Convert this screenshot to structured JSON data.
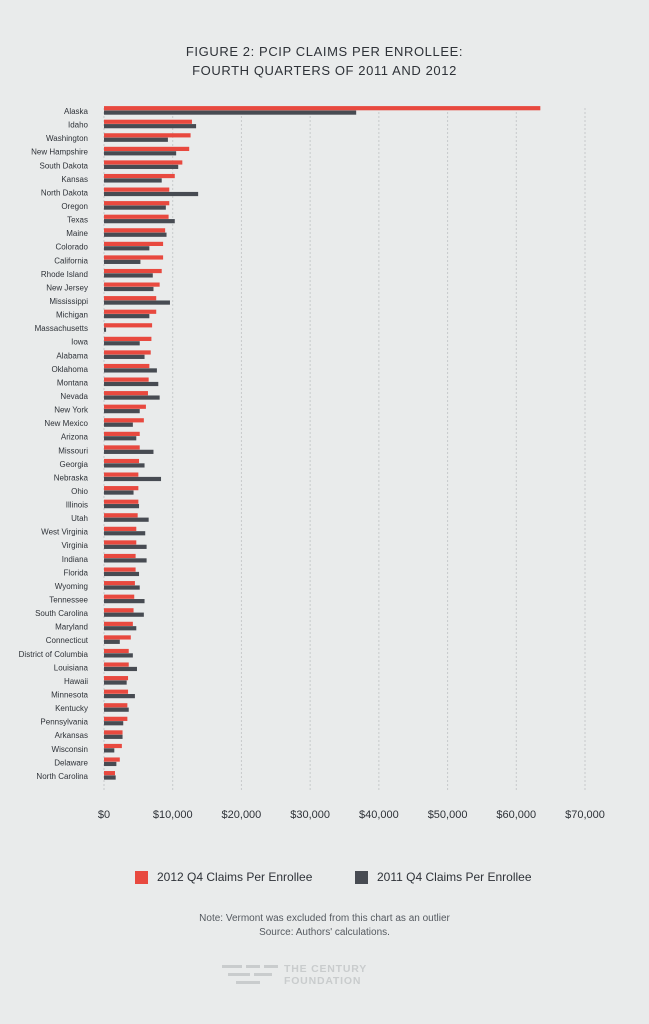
{
  "title_line1": "FIGURE 2: PCIP CLAIMS PER ENROLLEE:",
  "title_line2": "FOURTH QUARTERS OF 2011 AND 2012",
  "note": "Note: Vermont was excluded from this chart as an outlier",
  "source": "Source: Authors' calculations.",
  "logo": {
    "line1": "THE CENTURY",
    "line2": "FOUNDATION"
  },
  "colors": {
    "s2012": "#e8493f",
    "s2011": "#474b52",
    "grid": "#c7cacb",
    "text": "#2e3238"
  },
  "chart_data": {
    "type": "bar",
    "orientation": "horizontal",
    "xlim": [
      0,
      70000
    ],
    "x_ticks": [
      "$0",
      "$10,000",
      "$20,000",
      "$30,000",
      "$40,000",
      "$50,000",
      "$60,000",
      "$70,000"
    ],
    "x_tick_values": [
      0,
      10000,
      20000,
      30000,
      40000,
      50000,
      60000,
      70000
    ],
    "grid": true,
    "legend_position": "bottom",
    "categories": [
      "Alaska",
      "Idaho",
      "Washington",
      "New Hampshire",
      "South Dakota",
      "Kansas",
      "North Dakota",
      "Oregon",
      "Texas",
      "Maine",
      "Colorado",
      "California",
      "Rhode Island",
      "New Jersey",
      "Mississippi",
      "Michigan",
      "Massachusetts",
      "Iowa",
      "Alabama",
      "Oklahoma",
      "Montana",
      "Nevada",
      "New York",
      "New Mexico",
      "Arizona",
      "Missouri",
      "Georgia",
      "Nebraska",
      "Ohio",
      "Illinois",
      "Utah",
      "West Virginia",
      "Virginia",
      "Indiana",
      "Florida",
      "Wyoming",
      "Tennessee",
      "South Carolina",
      "Maryland",
      "Connecticut",
      "District of Columbia",
      "Louisiana",
      "Hawaii",
      "Minnesota",
      "Kentucky",
      "Pennsylvania",
      "Arkansas",
      "Wisconsin",
      "Delaware",
      "North Carolina"
    ],
    "series": [
      {
        "name": "2012 Q4 Claims Per Enrollee",
        "values": [
          63500,
          12800,
          12600,
          12400,
          11400,
          10300,
          9500,
          9500,
          9400,
          8900,
          8600,
          8600,
          8400,
          8100,
          7600,
          7600,
          7000,
          6900,
          6800,
          6600,
          6500,
          6400,
          6100,
          5800,
          5200,
          5200,
          5100,
          5000,
          5000,
          5000,
          4900,
          4700,
          4700,
          4600,
          4600,
          4500,
          4400,
          4300,
          4200,
          3900,
          3600,
          3600,
          3500,
          3500,
          3400,
          3400,
          2700,
          2600,
          2300,
          1600
        ]
      },
      {
        "name": "2011 Q4 Claims Per Enrollee",
        "values": [
          36700,
          13400,
          9300,
          10500,
          10800,
          8400,
          13700,
          9000,
          10300,
          9100,
          6600,
          5300,
          7100,
          7200,
          9600,
          6600,
          300,
          5200,
          5900,
          7700,
          7900,
          8100,
          5200,
          4200,
          4700,
          7200,
          5900,
          8300,
          4300,
          5100,
          6500,
          6000,
          6200,
          6200,
          5100,
          5200,
          5900,
          5800,
          4700,
          2300,
          4200,
          4800,
          3300,
          4500,
          3600,
          2800,
          2700,
          1500,
          1800,
          1700
        ]
      }
    ]
  }
}
